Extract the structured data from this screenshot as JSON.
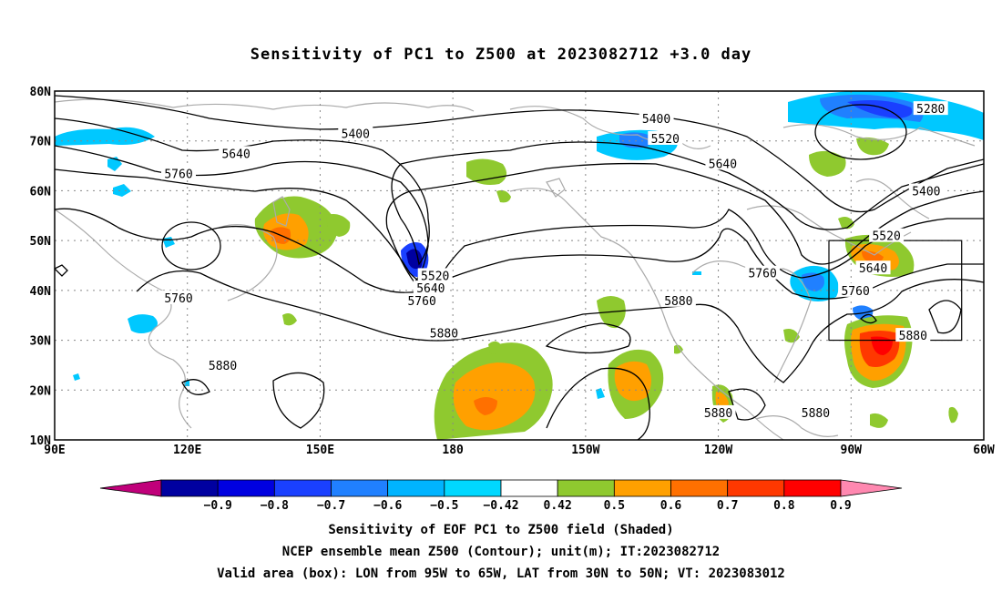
{
  "title": "Sensitivity of PC1 to Z500 at 2023082712 +3.0 day",
  "map": {
    "lon_range": [
      90,
      300
    ],
    "lat_range": [
      10,
      80
    ],
    "x_ticks": [
      {
        "lon": 90,
        "label": "90E"
      },
      {
        "lon": 120,
        "label": "120E"
      },
      {
        "lon": 150,
        "label": "150E"
      },
      {
        "lon": 180,
        "label": "180"
      },
      {
        "lon": 210,
        "label": "150W"
      },
      {
        "lon": 240,
        "label": "120W"
      },
      {
        "lon": 270,
        "label": "90W"
      },
      {
        "lon": 300,
        "label": "60W"
      }
    ],
    "y_ticks": [
      {
        "lat": 80,
        "label": "80N"
      },
      {
        "lat": 70,
        "label": "70N"
      },
      {
        "lat": 60,
        "label": "60N"
      },
      {
        "lat": 50,
        "label": "50N"
      },
      {
        "lat": 40,
        "label": "40N"
      },
      {
        "lat": 30,
        "label": "30N"
      },
      {
        "lat": 20,
        "label": "20N"
      },
      {
        "lat": 10,
        "label": "10N"
      }
    ],
    "box": {
      "lon_min": 265,
      "lon_max": 295,
      "lat_min": 30,
      "lat_max": 50
    },
    "contour_labels": [
      {
        "text": "5400",
        "lon": 158,
        "lat": 71.5
      },
      {
        "text": "5400",
        "lon": 226,
        "lat": 74.5
      },
      {
        "text": "5280",
        "lon": 288,
        "lat": 76.5
      },
      {
        "text": "5520",
        "lon": 228,
        "lat": 70.5
      },
      {
        "text": "5640",
        "lon": 131,
        "lat": 67.5
      },
      {
        "text": "5640",
        "lon": 241,
        "lat": 65.5
      },
      {
        "text": "5400",
        "lon": 287,
        "lat": 60
      },
      {
        "text": "5760",
        "lon": 118,
        "lat": 63.5
      },
      {
        "text": "5520",
        "lon": 278,
        "lat": 51
      },
      {
        "text": "5640",
        "lon": 275,
        "lat": 44.5
      },
      {
        "text": "5760",
        "lon": 271,
        "lat": 40
      },
      {
        "text": "5520",
        "lon": 176,
        "lat": 43
      },
      {
        "text": "5640",
        "lon": 175,
        "lat": 40.5
      },
      {
        "text": "5760",
        "lon": 173,
        "lat": 38
      },
      {
        "text": "5760",
        "lon": 250,
        "lat": 43.5
      },
      {
        "text": "5760",
        "lon": 118,
        "lat": 38.5
      },
      {
        "text": "5880",
        "lon": 231,
        "lat": 38
      },
      {
        "text": "5880",
        "lon": 178,
        "lat": 31.5
      },
      {
        "text": "5880",
        "lon": 128,
        "lat": 25
      },
      {
        "text": "5880",
        "lon": 284,
        "lat": 31
      },
      {
        "text": "5880",
        "lon": 240,
        "lat": 15.5
      },
      {
        "text": "5880",
        "lon": 262,
        "lat": 15.5
      }
    ]
  },
  "colorbar": {
    "colors": [
      "#c0007a",
      "#0000a0",
      "#0000e0",
      "#1a40ff",
      "#2080ff",
      "#00b4ff",
      "#00d8ff",
      "#ffffff",
      "#8fc92f",
      "#ffa000",
      "#ff7000",
      "#ff3800",
      "#ff0000",
      "#ff88b0"
    ],
    "labels": [
      "−0.9",
      "−0.8",
      "−0.7",
      "−0.6",
      "−0.5",
      "−0.42",
      "0.42",
      "0.5",
      "0.6",
      "0.7",
      "0.8",
      "0.9"
    ]
  },
  "captions": {
    "line1": "Sensitivity of EOF PC1 to Z500 field (Shaded)",
    "line2": "NCEP ensemble mean Z500 (Contour); unit(m); IT:2023082712",
    "line3": "Valid area (box): LON from 95W to 65W, LAT from 30N to 50N; VT: 2023083012"
  }
}
